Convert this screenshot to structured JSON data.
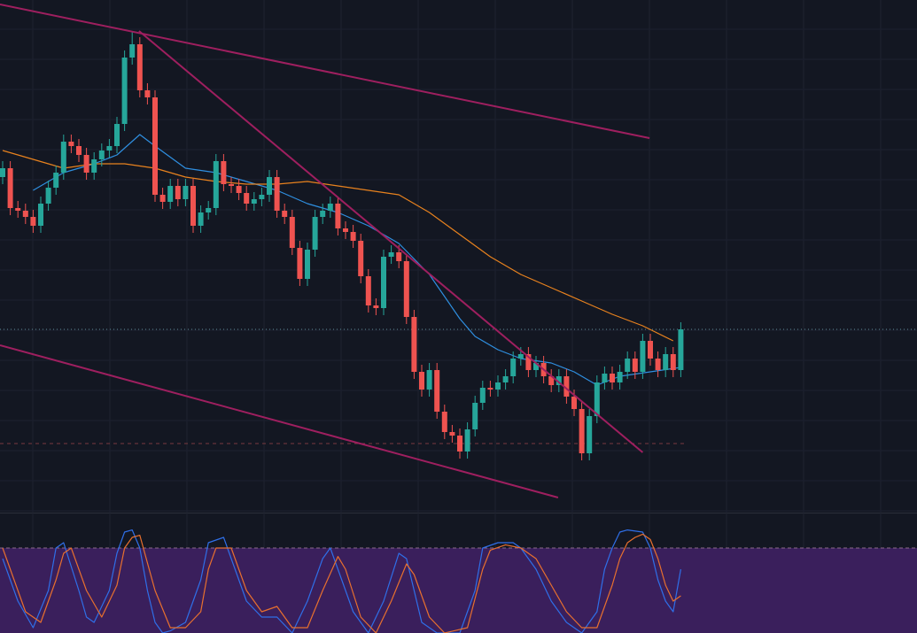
{
  "chart_data": {
    "type": "candlestick",
    "grid": true,
    "up_color": "#26a69a",
    "down_color": "#ef5350",
    "ylim": [
      0,
      580
    ],
    "open": [
      380,
      390,
      345,
      342,
      335,
      325,
      350,
      368,
      385,
      420,
      415,
      405,
      385,
      400,
      410,
      415,
      440,
      515,
      530,
      478,
      470,
      360,
      352,
      370,
      355,
      370,
      325,
      340,
      345,
      398,
      372,
      370,
      362,
      350,
      355,
      360,
      380,
      342,
      335,
      300,
      265,
      298,
      335,
      342,
      350,
      322,
      318,
      308,
      268,
      235,
      232,
      290,
      295,
      285,
      222,
      160,
      140,
      162,
      115,
      92,
      88,
      70,
      95,
      125,
      142,
      140,
      148,
      155,
      175,
      180,
      162,
      170,
      155,
      145,
      155,
      132,
      118,
      68,
      110,
      148,
      158,
      148,
      160,
      175,
      160,
      195,
      175,
      162,
      180,
      162
    ],
    "close": [
      390,
      345,
      342,
      335,
      325,
      350,
      368,
      385,
      420,
      415,
      405,
      385,
      400,
      410,
      415,
      440,
      515,
      530,
      478,
      470,
      360,
      352,
      370,
      355,
      370,
      325,
      340,
      345,
      398,
      372,
      370,
      362,
      350,
      355,
      360,
      380,
      342,
      335,
      300,
      265,
      298,
      335,
      342,
      350,
      322,
      318,
      308,
      268,
      235,
      232,
      290,
      295,
      285,
      222,
      160,
      140,
      162,
      115,
      92,
      88,
      70,
      95,
      125,
      142,
      140,
      148,
      155,
      175,
      180,
      162,
      170,
      155,
      145,
      155,
      132,
      118,
      68,
      110,
      148,
      158,
      148,
      160,
      175,
      160,
      195,
      175,
      162,
      180,
      162,
      208
    ],
    "high": [
      398,
      398,
      353,
      350,
      343,
      358,
      376,
      393,
      428,
      428,
      423,
      413,
      408,
      418,
      423,
      448,
      523,
      545,
      538,
      486,
      478,
      368,
      378,
      378,
      378,
      378,
      348,
      353,
      406,
      406,
      380,
      378,
      370,
      363,
      368,
      388,
      388,
      350,
      343,
      308,
      306,
      343,
      350,
      358,
      358,
      330,
      326,
      316,
      276,
      243,
      298,
      303,
      303,
      293,
      230,
      168,
      170,
      170,
      123,
      100,
      96,
      103,
      133,
      150,
      150,
      156,
      163,
      183,
      188,
      188,
      178,
      178,
      163,
      163,
      163,
      140,
      126,
      118,
      156,
      166,
      166,
      168,
      183,
      183,
      203,
      203,
      183,
      188,
      188,
      216
    ],
    "low": [
      372,
      337,
      334,
      327,
      317,
      317,
      342,
      360,
      377,
      407,
      397,
      377,
      377,
      392,
      402,
      407,
      432,
      507,
      470,
      462,
      352,
      344,
      344,
      347,
      347,
      317,
      317,
      332,
      337,
      364,
      362,
      354,
      342,
      342,
      347,
      352,
      334,
      327,
      292,
      257,
      257,
      290,
      327,
      334,
      314,
      310,
      300,
      260,
      227,
      224,
      224,
      282,
      277,
      214,
      152,
      132,
      132,
      107,
      84,
      80,
      62,
      62,
      87,
      117,
      132,
      132,
      140,
      147,
      167,
      154,
      154,
      147,
      137,
      137,
      124,
      110,
      60,
      60,
      102,
      140,
      140,
      140,
      152,
      152,
      152,
      167,
      154,
      154,
      154,
      154
    ],
    "moving_averages": [
      {
        "color": "#2f8fe0",
        "x": [
          4,
          8,
          12,
          15,
          18,
          20,
          24,
          28,
          32,
          36,
          40,
          44,
          48,
          52,
          56,
          60,
          62,
          65,
          68,
          72,
          75,
          78,
          81,
          85,
          89
        ],
        "values": [
          365,
          385,
          395,
          405,
          428,
          415,
          390,
          385,
          375,
          365,
          350,
          340,
          325,
          305,
          270,
          220,
          200,
          185,
          175,
          170,
          160,
          145,
          155,
          160,
          165
        ]
      },
      {
        "color": "#e8821e",
        "x": [
          0,
          4,
          8,
          12,
          16,
          20,
          24,
          28,
          32,
          36,
          40,
          44,
          48,
          52,
          56,
          60,
          64,
          68,
          72,
          76,
          80,
          84,
          88
        ],
        "values": [
          410,
          400,
          390,
          395,
          395,
          390,
          380,
          375,
          372,
          372,
          375,
          370,
          365,
          360,
          340,
          315,
          290,
          270,
          255,
          240,
          225,
          212,
          195
        ]
      }
    ],
    "trend_lines": [
      {
        "color": "#9e1f5f",
        "x": [
          -0.35,
          84.9
        ],
        "values": [
          575,
          424
        ]
      },
      {
        "color": "#9e1f5f",
        "x": [
          17.9,
          84
        ],
        "values": [
          545,
          69
        ]
      },
      {
        "color": "#9e1f5f",
        "x": [
          -0.35,
          72.9
        ],
        "values": [
          190,
          18
        ]
      }
    ],
    "levels": [
      {
        "value": 208,
        "color": "#5e8a92",
        "dash": "1 3"
      },
      {
        "value": 79,
        "color": "#7a3a40",
        "dash": "4 4"
      }
    ],
    "oscillator": {
      "ylim": [
        0,
        100
      ],
      "band": [
        0,
        80
      ],
      "band_color": "#3a1f5c",
      "series": [
        {
          "color": "#2f6fe8",
          "x": [
            0,
            2,
            4,
            6,
            7,
            8,
            10,
            11,
            12,
            14,
            15,
            16,
            17,
            18,
            19,
            20,
            21,
            22,
            24,
            26,
            27,
            29,
            30,
            32,
            34,
            36,
            38,
            40,
            42,
            43,
            44,
            46,
            48,
            50,
            52,
            53,
            55,
            57,
            60,
            62,
            63,
            65,
            67,
            68,
            70,
            72,
            74,
            76,
            78,
            79,
            80,
            81,
            82,
            84,
            85,
            86,
            87,
            88,
            89
          ],
          "values": [
            70,
            30,
            5,
            40,
            80,
            85,
            40,
            15,
            10,
            40,
            75,
            95,
            97,
            80,
            40,
            10,
            0,
            2,
            10,
            50,
            85,
            90,
            70,
            30,
            15,
            15,
            0,
            30,
            70,
            80,
            60,
            20,
            0,
            30,
            75,
            70,
            10,
            0,
            0,
            40,
            80,
            85,
            85,
            80,
            60,
            30,
            10,
            0,
            20,
            60,
            80,
            95,
            97,
            95,
            80,
            50,
            30,
            20,
            60
          ]
        },
        {
          "color": "#e8702e",
          "x": [
            0,
            3,
            5,
            7,
            8,
            9,
            11,
            13,
            15,
            16,
            17,
            18,
            20,
            22,
            24,
            26,
            27,
            28,
            30,
            32,
            34,
            36,
            38,
            40,
            42,
            44,
            45,
            47,
            49,
            51,
            53,
            54,
            56,
            58,
            61,
            63,
            64,
            66,
            68,
            70,
            72,
            74,
            76,
            78,
            80,
            81,
            82,
            83,
            84,
            85,
            86,
            87,
            88,
            89
          ],
          "values": [
            80,
            20,
            10,
            50,
            75,
            80,
            40,
            15,
            45,
            80,
            90,
            92,
            40,
            5,
            5,
            20,
            60,
            80,
            80,
            40,
            20,
            25,
            5,
            5,
            40,
            72,
            60,
            15,
            0,
            30,
            65,
            55,
            15,
            0,
            5,
            60,
            78,
            83,
            80,
            70,
            45,
            20,
            5,
            5,
            45,
            70,
            85,
            90,
            93,
            88,
            70,
            45,
            30,
            35
          ]
        }
      ]
    }
  }
}
